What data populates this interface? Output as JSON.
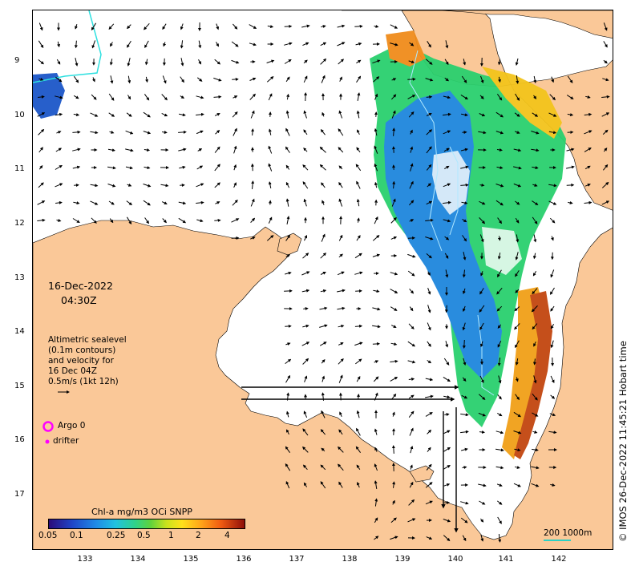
{
  "date_line": "16-Dec-2022",
  "time_line": "04:30Z",
  "legend": {
    "line1": "Altimetric sealevel",
    "line2": "(0.1m contours)",
    "line3": "and velocity for",
    "line4": "16 Dec 04Z",
    "line5": "0.5m/s (1kt 12h)",
    "argo_label": "Argo 0",
    "drifter_label": "drifter"
  },
  "colorbar": {
    "title": "Chl-a mg/m3 OCi SNPP",
    "ticks": [
      "0.05",
      "0.1",
      "0.25",
      "0.5",
      "1",
      "2",
      "4"
    ]
  },
  "y_ticks": [
    "9",
    "10",
    "11",
    "12",
    "13",
    "14",
    "15",
    "16",
    "17"
  ],
  "x_ticks": [
    "133",
    "134",
    "135",
    "136",
    "137",
    "138",
    "139",
    "140",
    "141",
    "142"
  ],
  "scale_label": "200  1000m",
  "credit": "© IMOS 26-Dec-2022 11:45:21 Hobart time",
  "colors": {
    "land": "#fac898",
    "argo": "#ff00ff",
    "contour": "#b0e8ff",
    "low_chl": "#1f6fd8",
    "mid_chl": "#3ccb3c",
    "high_chl": "#d96d12"
  }
}
